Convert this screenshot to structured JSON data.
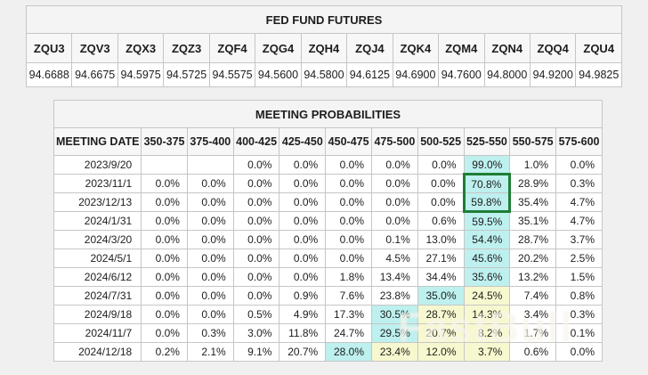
{
  "futures": {
    "title": "FED FUND FUTURES",
    "contracts": [
      "ZQU3",
      "ZQV3",
      "ZQX3",
      "ZQZ3",
      "ZQF4",
      "ZQG4",
      "ZQH4",
      "ZQJ4",
      "ZQK4",
      "ZQM4",
      "ZQN4",
      "ZQQ4",
      "ZQU4"
    ],
    "prices": [
      "94.6688",
      "94.6675",
      "94.5975",
      "94.5725",
      "94.5575",
      "94.5600",
      "94.5800",
      "94.6125",
      "94.6900",
      "94.7600",
      "94.8000",
      "94.9200",
      "94.9825"
    ]
  },
  "probabilities": {
    "title": "MEETING PROBABILITIES",
    "date_header": "MEETING DATE",
    "range_headers": [
      "350-375",
      "375-400",
      "400-425",
      "425-450",
      "450-475",
      "475-500",
      "500-525",
      "525-550",
      "550-575",
      "575-600"
    ],
    "rows": [
      {
        "date": "2023/9/20",
        "values": [
          "",
          "",
          "0.0%",
          "0.0%",
          "0.0%",
          "0.0%",
          "0.0%",
          "99.0%",
          "1.0%",
          "0.0%"
        ],
        "hl": [
          "",
          "",
          "",
          "",
          "",
          "",
          "",
          "c",
          "",
          ""
        ]
      },
      {
        "date": "2023/11/1",
        "values": [
          "0.0%",
          "0.0%",
          "0.0%",
          "0.0%",
          "0.0%",
          "0.0%",
          "0.0%",
          "70.8%",
          "28.9%",
          "0.3%"
        ],
        "hl": [
          "",
          "",
          "",
          "",
          "",
          "",
          "",
          "c",
          "",
          ""
        ]
      },
      {
        "date": "2023/12/13",
        "values": [
          "0.0%",
          "0.0%",
          "0.0%",
          "0.0%",
          "0.0%",
          "0.0%",
          "0.0%",
          "59.8%",
          "35.4%",
          "4.7%"
        ],
        "hl": [
          "",
          "",
          "",
          "",
          "",
          "",
          "",
          "c",
          "",
          ""
        ]
      },
      {
        "date": "2024/1/31",
        "values": [
          "0.0%",
          "0.0%",
          "0.0%",
          "0.0%",
          "0.0%",
          "0.0%",
          "0.6%",
          "59.5%",
          "35.1%",
          "4.7%"
        ],
        "hl": [
          "",
          "",
          "",
          "",
          "",
          "",
          "",
          "c",
          "",
          ""
        ]
      },
      {
        "date": "2024/3/20",
        "values": [
          "0.0%",
          "0.0%",
          "0.0%",
          "0.0%",
          "0.0%",
          "0.1%",
          "13.0%",
          "54.4%",
          "28.7%",
          "3.7%"
        ],
        "hl": [
          "",
          "",
          "",
          "",
          "",
          "",
          "",
          "c",
          "",
          ""
        ]
      },
      {
        "date": "2024/5/1",
        "values": [
          "0.0%",
          "0.0%",
          "0.0%",
          "0.0%",
          "0.0%",
          "4.5%",
          "27.1%",
          "45.6%",
          "20.2%",
          "2.5%"
        ],
        "hl": [
          "",
          "",
          "",
          "",
          "",
          "",
          "",
          "c",
          "",
          ""
        ]
      },
      {
        "date": "2024/6/12",
        "values": [
          "0.0%",
          "0.0%",
          "0.0%",
          "0.0%",
          "1.8%",
          "13.4%",
          "34.4%",
          "35.6%",
          "13.2%",
          "1.5%"
        ],
        "hl": [
          "",
          "",
          "",
          "",
          "",
          "",
          "",
          "c",
          "",
          ""
        ]
      },
      {
        "date": "2024/7/31",
        "values": [
          "0.0%",
          "0.0%",
          "0.0%",
          "0.9%",
          "7.6%",
          "23.8%",
          "35.0%",
          "24.5%",
          "7.4%",
          "0.8%"
        ],
        "hl": [
          "",
          "",
          "",
          "",
          "",
          "",
          "c",
          "y",
          "",
          ""
        ]
      },
      {
        "date": "2024/9/18",
        "values": [
          "0.0%",
          "0.0%",
          "0.5%",
          "4.9%",
          "17.3%",
          "30.5%",
          "28.7%",
          "14.3%",
          "3.4%",
          "0.3%"
        ],
        "hl": [
          "",
          "",
          "",
          "",
          "",
          "c",
          "y",
          "y",
          "",
          ""
        ]
      },
      {
        "date": "2024/11/7",
        "values": [
          "0.0%",
          "0.3%",
          "3.0%",
          "11.8%",
          "24.7%",
          "29.5%",
          "20.7%",
          "8.2%",
          "1.7%",
          "0.1%"
        ],
        "hl": [
          "",
          "",
          "",
          "",
          "",
          "c",
          "y",
          "y",
          "",
          ""
        ]
      },
      {
        "date": "2024/12/18",
        "values": [
          "0.2%",
          "2.1%",
          "9.1%",
          "20.7%",
          "28.0%",
          "23.4%",
          "12.0%",
          "3.7%",
          "0.6%",
          "0.0%"
        ],
        "hl": [
          "",
          "",
          "",
          "",
          "c",
          "y",
          "y",
          "y",
          "",
          ""
        ]
      }
    ],
    "green_box": {
      "column_index": 7,
      "row_start": 1,
      "row_end": 2
    }
  },
  "watermark": {
    "text": "FastBull"
  },
  "colors": {
    "highlight_cyan": "#bdf0ee",
    "highlight_yellow": "#f8f8d0",
    "green_box_border": "#1f7d35",
    "page_background": "#f0f0f0"
  }
}
